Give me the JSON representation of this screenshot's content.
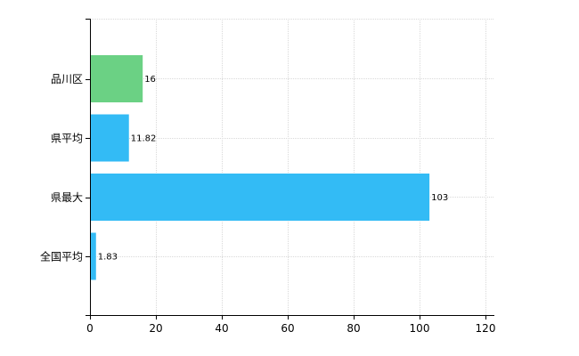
{
  "chart_data": {
    "type": "bar",
    "orientation": "horizontal",
    "categories": [
      "品川区",
      "県平均",
      "県最大",
      "全国平均"
    ],
    "values": [
      16,
      11.82,
      103,
      1.83
    ],
    "data_labels": [
      "16",
      "11.82",
      "103",
      "1.83"
    ],
    "bar_colors": [
      "#6bd184",
      "#33bbf5",
      "#33bbf5",
      "#33bbf5"
    ],
    "title": "",
    "xlabel": "",
    "ylabel": "",
    "xlim": [
      0,
      120
    ],
    "x_ticks": [
      0,
      20,
      40,
      60,
      80,
      100,
      120
    ],
    "x_tick_labels": [
      "0",
      "20",
      "40",
      "60",
      "80",
      "100",
      "120"
    ],
    "grid": true,
    "legend": "none"
  }
}
